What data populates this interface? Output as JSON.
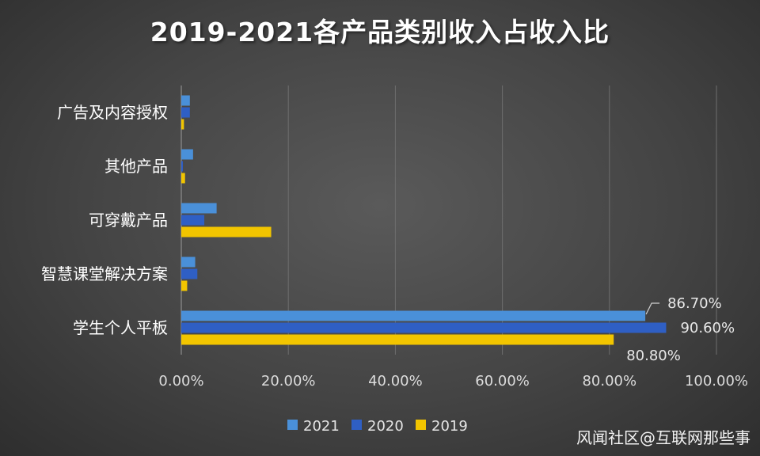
{
  "chart_data": {
    "type": "bar",
    "orientation": "horizontal",
    "title": "2019-2021各产品类别收入占收入比",
    "categories": [
      "广告及内容授权",
      "其他产品",
      "可穿戴产品",
      "智慧课堂解决方案",
      "学生个人平板"
    ],
    "series": [
      {
        "name": "2021",
        "color": "#4a90d9",
        "values": [
          1.6,
          2.2,
          6.6,
          2.6,
          86.7
        ]
      },
      {
        "name": "2020",
        "color": "#2f5fc4",
        "values": [
          1.6,
          0.3,
          4.3,
          3.0,
          90.6
        ]
      },
      {
        "name": "2019",
        "color": "#f2c500",
        "values": [
          0.5,
          0.7,
          16.8,
          1.1,
          80.8
        ]
      }
    ],
    "xlim": [
      0,
      100
    ],
    "xticks": [
      "0.00%",
      "20.00%",
      "40.00%",
      "60.00%",
      "80.00%",
      "100.00%"
    ],
    "data_labels": [
      {
        "category": "学生个人平板",
        "series": "2021",
        "text": "86.70%"
      },
      {
        "category": "学生个人平板",
        "series": "2020",
        "text": "90.60%"
      },
      {
        "category": "学生个人平板",
        "series": "2019",
        "text": "80.80%"
      }
    ],
    "legend": {
      "position": "bottom",
      "entries": [
        "2021",
        "2020",
        "2019"
      ]
    },
    "grid": true
  },
  "watermark": "风闻社区@互联网那些事"
}
